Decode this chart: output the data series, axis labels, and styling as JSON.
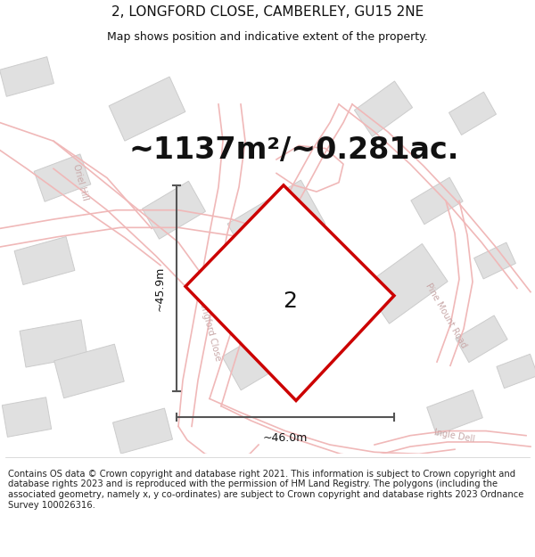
{
  "title": "2, LONGFORD CLOSE, CAMBERLEY, GU15 2NE",
  "subtitle": "Map shows position and indicative extent of the property.",
  "area_text": "~1137m²/~0.281ac.",
  "width_label": "~46.0m",
  "height_label": "~45.9m",
  "plot_number": "2",
  "footer_text": "Contains OS data © Crown copyright and database right 2021. This information is subject to Crown copyright and database rights 2023 and is reproduced with the permission of HM Land Registry. The polygons (including the associated geometry, namely x, y co-ordinates) are subject to Crown copyright and database rights 2023 Ordnance Survey 100026316.",
  "map_bg": "#f9f9f9",
  "road_color": "#f0b8b8",
  "road_lw": 1.2,
  "building_color": "#e0e0e0",
  "building_edge": "#cccccc",
  "plot_edge": "#cc0000",
  "dim_color": "#555555",
  "text_color": "#111111",
  "road_label_color": "#c8a8a8",
  "title_fontsize": 11,
  "subtitle_fontsize": 9,
  "area_fontsize": 24,
  "dim_fontsize": 9,
  "plot_num_fontsize": 18,
  "footer_fontsize": 7.2
}
